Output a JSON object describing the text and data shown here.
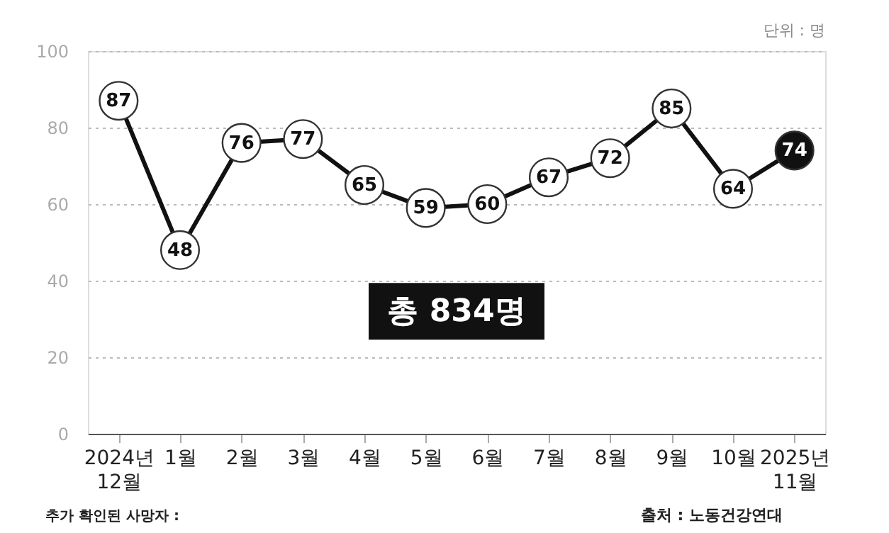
{
  "chart_data": {
    "type": "line",
    "categories": [
      "2024년\n12월",
      "1월",
      "2월",
      "3월",
      "4월",
      "5월",
      "6월",
      "7월",
      "8월",
      "9월",
      "10월",
      "2025년\n11월"
    ],
    "series": [
      {
        "color": "#111111",
        "values": [
          87,
          48,
          76,
          77,
          65,
          59,
          60,
          67,
          72,
          85,
          64,
          74
        ]
      }
    ],
    "colors": [
      "#ffffff",
      "#ffffff",
      "#ffffff",
      "#ffffff",
      "#ffffff",
      "#ffffff",
      "#ffffff",
      "#ffffff",
      "#ffffff",
      "#ffffff",
      "#ffffff",
      "#111111"
    ],
    "data_labels": true,
    "marker": "circle",
    "line_style": "solid",
    "ylim": [
      0,
      100
    ],
    "yticks": [
      0,
      20,
      40,
      60,
      80,
      100
    ],
    "grid": "y",
    "annotations": [
      "단위 : 명",
      "총 834명",
      "추가 확인된 사망자 :",
      "출처 : 노동건강연대"
    ]
  }
}
